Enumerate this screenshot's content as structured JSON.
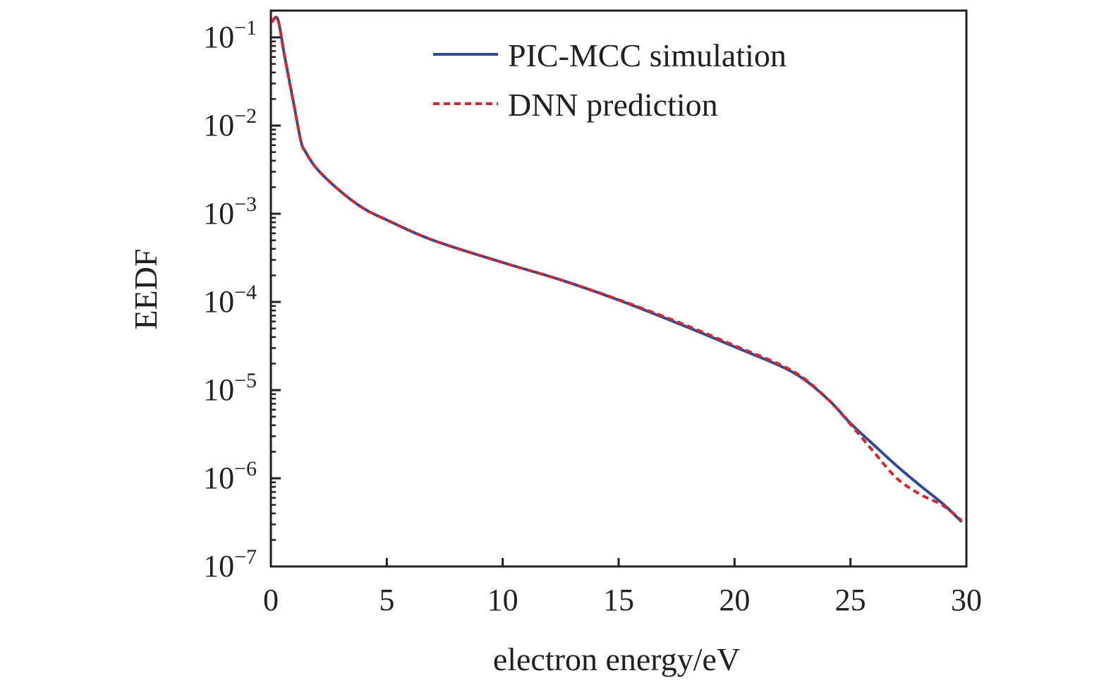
{
  "chart_data": {
    "type": "line",
    "title": "",
    "xlabel": "electron energy/eV",
    "ylabel": "EEDF",
    "xlim": [
      0,
      30
    ],
    "ylim": [
      1e-07,
      0.2
    ],
    "yscale": "log",
    "grid": false,
    "legend_position": "top-right",
    "x_ticks": [
      "0",
      "5",
      "10",
      "15",
      "20",
      "25",
      "30"
    ],
    "y_ticks": [
      {
        "base": "10",
        "exp": "−1"
      },
      {
        "base": "10",
        "exp": "−2"
      },
      {
        "base": "10",
        "exp": "−3"
      },
      {
        "base": "10",
        "exp": "−4"
      },
      {
        "base": "10",
        "exp": "−5"
      },
      {
        "base": "10",
        "exp": "−6"
      },
      {
        "base": "10",
        "exp": "−7"
      }
    ],
    "series": [
      {
        "name": "PIC-MCC simulation",
        "color": "#2e4a9b",
        "style": "solid",
        "x": [
          0.05,
          0.3,
          0.6,
          1.0,
          1.3,
          1.5,
          2,
          3,
          4,
          5,
          7,
          10,
          12.5,
          15,
          17.5,
          20,
          22.5,
          24,
          25,
          26,
          27,
          28,
          29,
          29.8
        ],
        "y": [
          0.15,
          0.16,
          0.06,
          0.017,
          0.0066,
          0.005,
          0.0032,
          0.0018,
          0.00115,
          0.00085,
          0.0005,
          0.00028,
          0.000178,
          0.000105,
          5.8e-05,
          3.1e-05,
          1.6e-05,
          8e-06,
          4.2e-06,
          2.4e-06,
          1.38e-06,
          8.3e-07,
          5.1e-07,
          3.2e-07
        ]
      },
      {
        "name": "DNN prediction",
        "color": "#d7262b",
        "style": "dashed",
        "x": [
          0.05,
          0.3,
          0.6,
          1.0,
          1.3,
          1.5,
          2,
          3,
          4,
          5,
          7,
          10,
          12.5,
          15,
          17.5,
          20,
          22.5,
          24,
          25,
          26,
          27,
          28,
          29,
          29.8
        ],
        "y": [
          0.15,
          0.16,
          0.06,
          0.017,
          0.0066,
          0.005,
          0.0032,
          0.0018,
          0.00115,
          0.00085,
          0.0005,
          0.00028,
          0.000178,
          0.000106,
          6e-05,
          3.2e-05,
          1.65e-05,
          8e-06,
          4.1e-06,
          2e-06,
          1e-06,
          6.6e-07,
          4.9e-07,
          3.3e-07
        ]
      }
    ]
  }
}
